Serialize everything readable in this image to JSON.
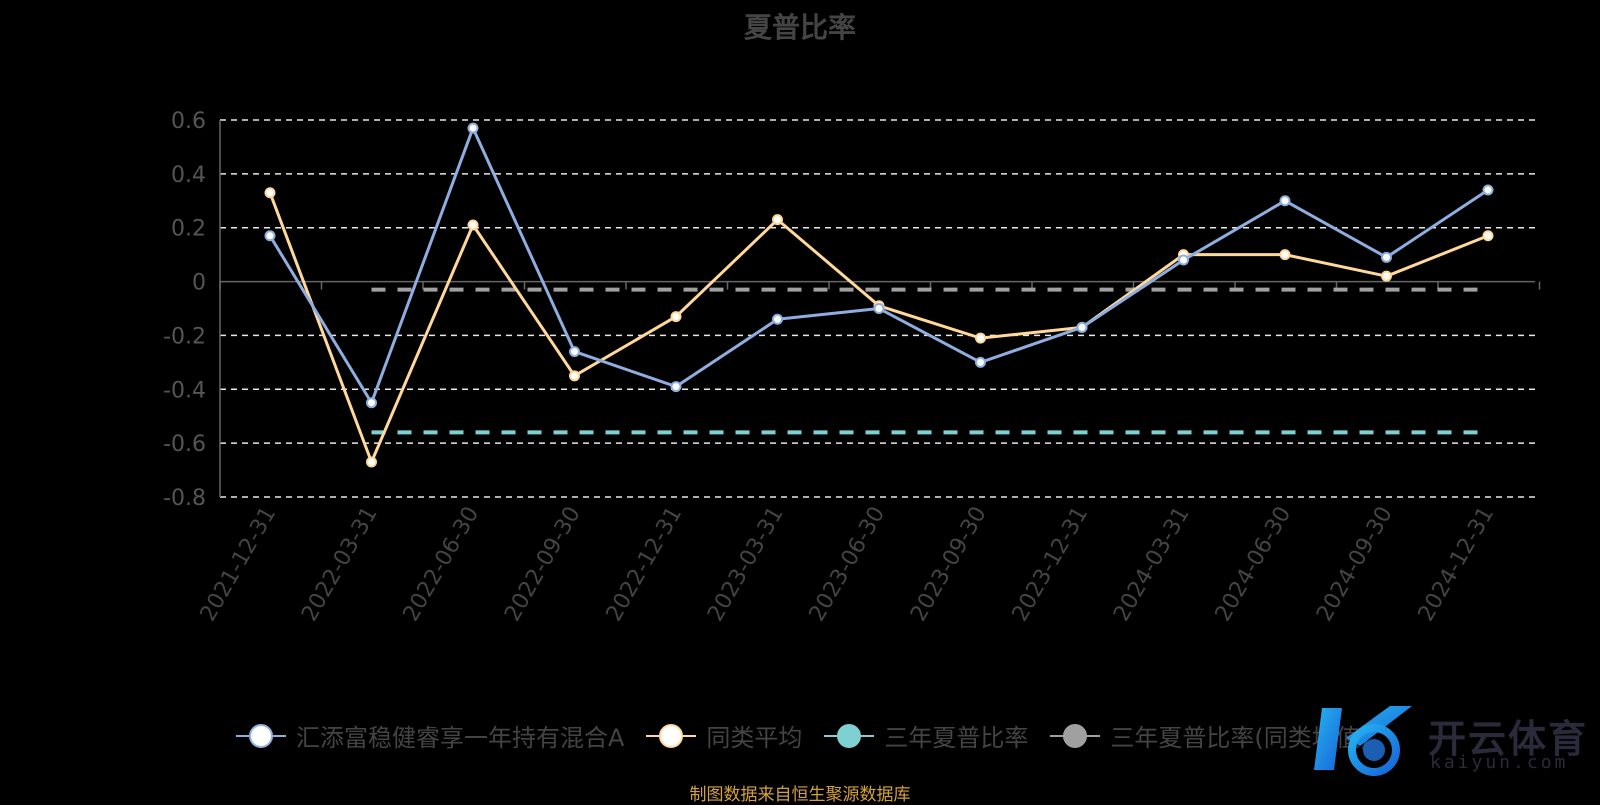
{
  "chart_data": {
    "type": "line",
    "title": "夏普比率",
    "categories": [
      "2021-12-31",
      "2022-03-31",
      "2022-06-30",
      "2022-09-30",
      "2022-12-31",
      "2023-03-31",
      "2023-06-30",
      "2023-09-30",
      "2023-12-31",
      "2024-03-31",
      "2024-06-30",
      "2024-09-30",
      "2024-12-31"
    ],
    "ylim": [
      -0.8,
      0.6
    ],
    "yticks": [
      0.6,
      0.4,
      0.2,
      0,
      -0.2,
      -0.4,
      -0.6,
      -0.8
    ],
    "ytick_labels": [
      "0.6",
      "0.4",
      "0.2",
      "0",
      "-0.2",
      "-0.4",
      "-0.6",
      "-0.8"
    ],
    "grid": true,
    "legend_position": "bottom",
    "series": [
      {
        "name": "汇添富稳健睿享一年持有混合A",
        "color": "#8eaee0",
        "values": [
          0.17,
          -0.45,
          0.57,
          -0.26,
          -0.39,
          -0.14,
          -0.1,
          -0.3,
          -0.17,
          0.08,
          0.3,
          0.09,
          0.34
        ]
      },
      {
        "name": "同类平均",
        "color": "#ffd89a",
        "values": [
          0.33,
          -0.67,
          0.21,
          -0.35,
          -0.13,
          0.23,
          -0.09,
          -0.21,
          -0.17,
          0.1,
          0.1,
          0.02,
          0.17
        ]
      },
      {
        "name": "三年夏普比率",
        "color": "#7fd0d0",
        "dashed": true,
        "constant": -0.56
      },
      {
        "name": "三年夏普比率(同类均值)",
        "color": "#a0a0a0",
        "dashed": true,
        "constant": -0.03
      }
    ]
  },
  "footer_note": "制图数据来自恒生聚源数据库",
  "watermark": {
    "text": "开云体育",
    "sub": "kaiyun.com"
  }
}
